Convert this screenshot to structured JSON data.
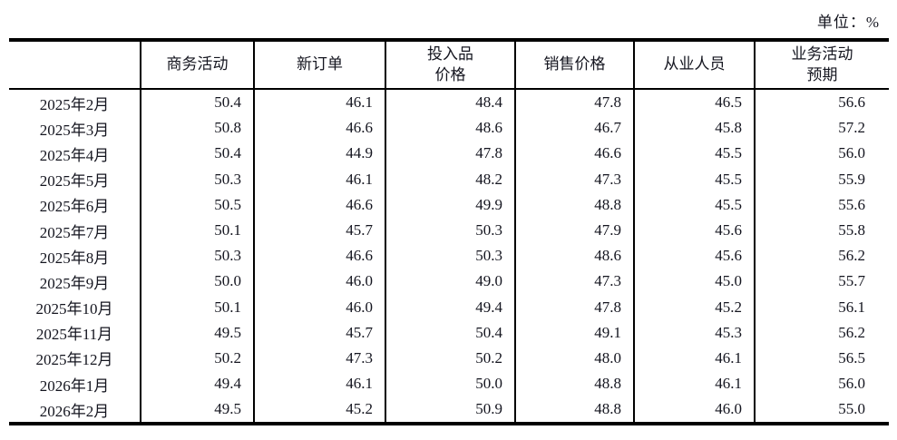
{
  "unit_label": "单位：%",
  "colors": {
    "background": "#ffffff",
    "text": "#14151f",
    "border": "#000000"
  },
  "table": {
    "headers": [
      {
        "label": ""
      },
      {
        "label": "商务活动"
      },
      {
        "label": "新订单"
      },
      {
        "label": "投入品\n价格"
      },
      {
        "label": "销售价格"
      },
      {
        "label": "从业人员"
      },
      {
        "label": "业务活动\n预期"
      }
    ],
    "rows": [
      {
        "period": "2025年2月",
        "values": [
          "50.4",
          "46.1",
          "48.4",
          "47.8",
          "46.5",
          "56.6"
        ]
      },
      {
        "period": "2025年3月",
        "values": [
          "50.8",
          "46.6",
          "48.6",
          "46.7",
          "45.8",
          "57.2"
        ]
      },
      {
        "period": "2025年4月",
        "values": [
          "50.4",
          "44.9",
          "47.8",
          "46.6",
          "45.5",
          "56.0"
        ]
      },
      {
        "period": "2025年5月",
        "values": [
          "50.3",
          "46.1",
          "48.2",
          "47.3",
          "45.5",
          "55.9"
        ]
      },
      {
        "period": "2025年6月",
        "values": [
          "50.5",
          "46.6",
          "49.9",
          "48.8",
          "45.5",
          "55.6"
        ]
      },
      {
        "period": "2025年7月",
        "values": [
          "50.1",
          "45.7",
          "50.3",
          "47.9",
          "45.6",
          "55.8"
        ]
      },
      {
        "period": "2025年8月",
        "values": [
          "50.3",
          "46.6",
          "50.3",
          "48.6",
          "45.6",
          "56.2"
        ]
      },
      {
        "period": "2025年9月",
        "values": [
          "50.0",
          "46.0",
          "49.0",
          "47.3",
          "45.0",
          "55.7"
        ]
      },
      {
        "period": "2025年10月",
        "values": [
          "50.1",
          "46.0",
          "49.4",
          "47.8",
          "45.2",
          "56.1"
        ]
      },
      {
        "period": "2025年11月",
        "values": [
          "49.5",
          "45.7",
          "50.4",
          "49.1",
          "45.3",
          "56.2"
        ]
      },
      {
        "period": "2025年12月",
        "values": [
          "50.2",
          "47.3",
          "50.2",
          "48.0",
          "46.1",
          "56.5"
        ]
      },
      {
        "period": "2026年1月",
        "values": [
          "49.4",
          "46.1",
          "50.0",
          "48.8",
          "46.1",
          "56.0"
        ]
      },
      {
        "period": "2026年2月",
        "values": [
          "49.5",
          "45.2",
          "50.9",
          "48.8",
          "46.0",
          "55.0"
        ]
      }
    ]
  }
}
